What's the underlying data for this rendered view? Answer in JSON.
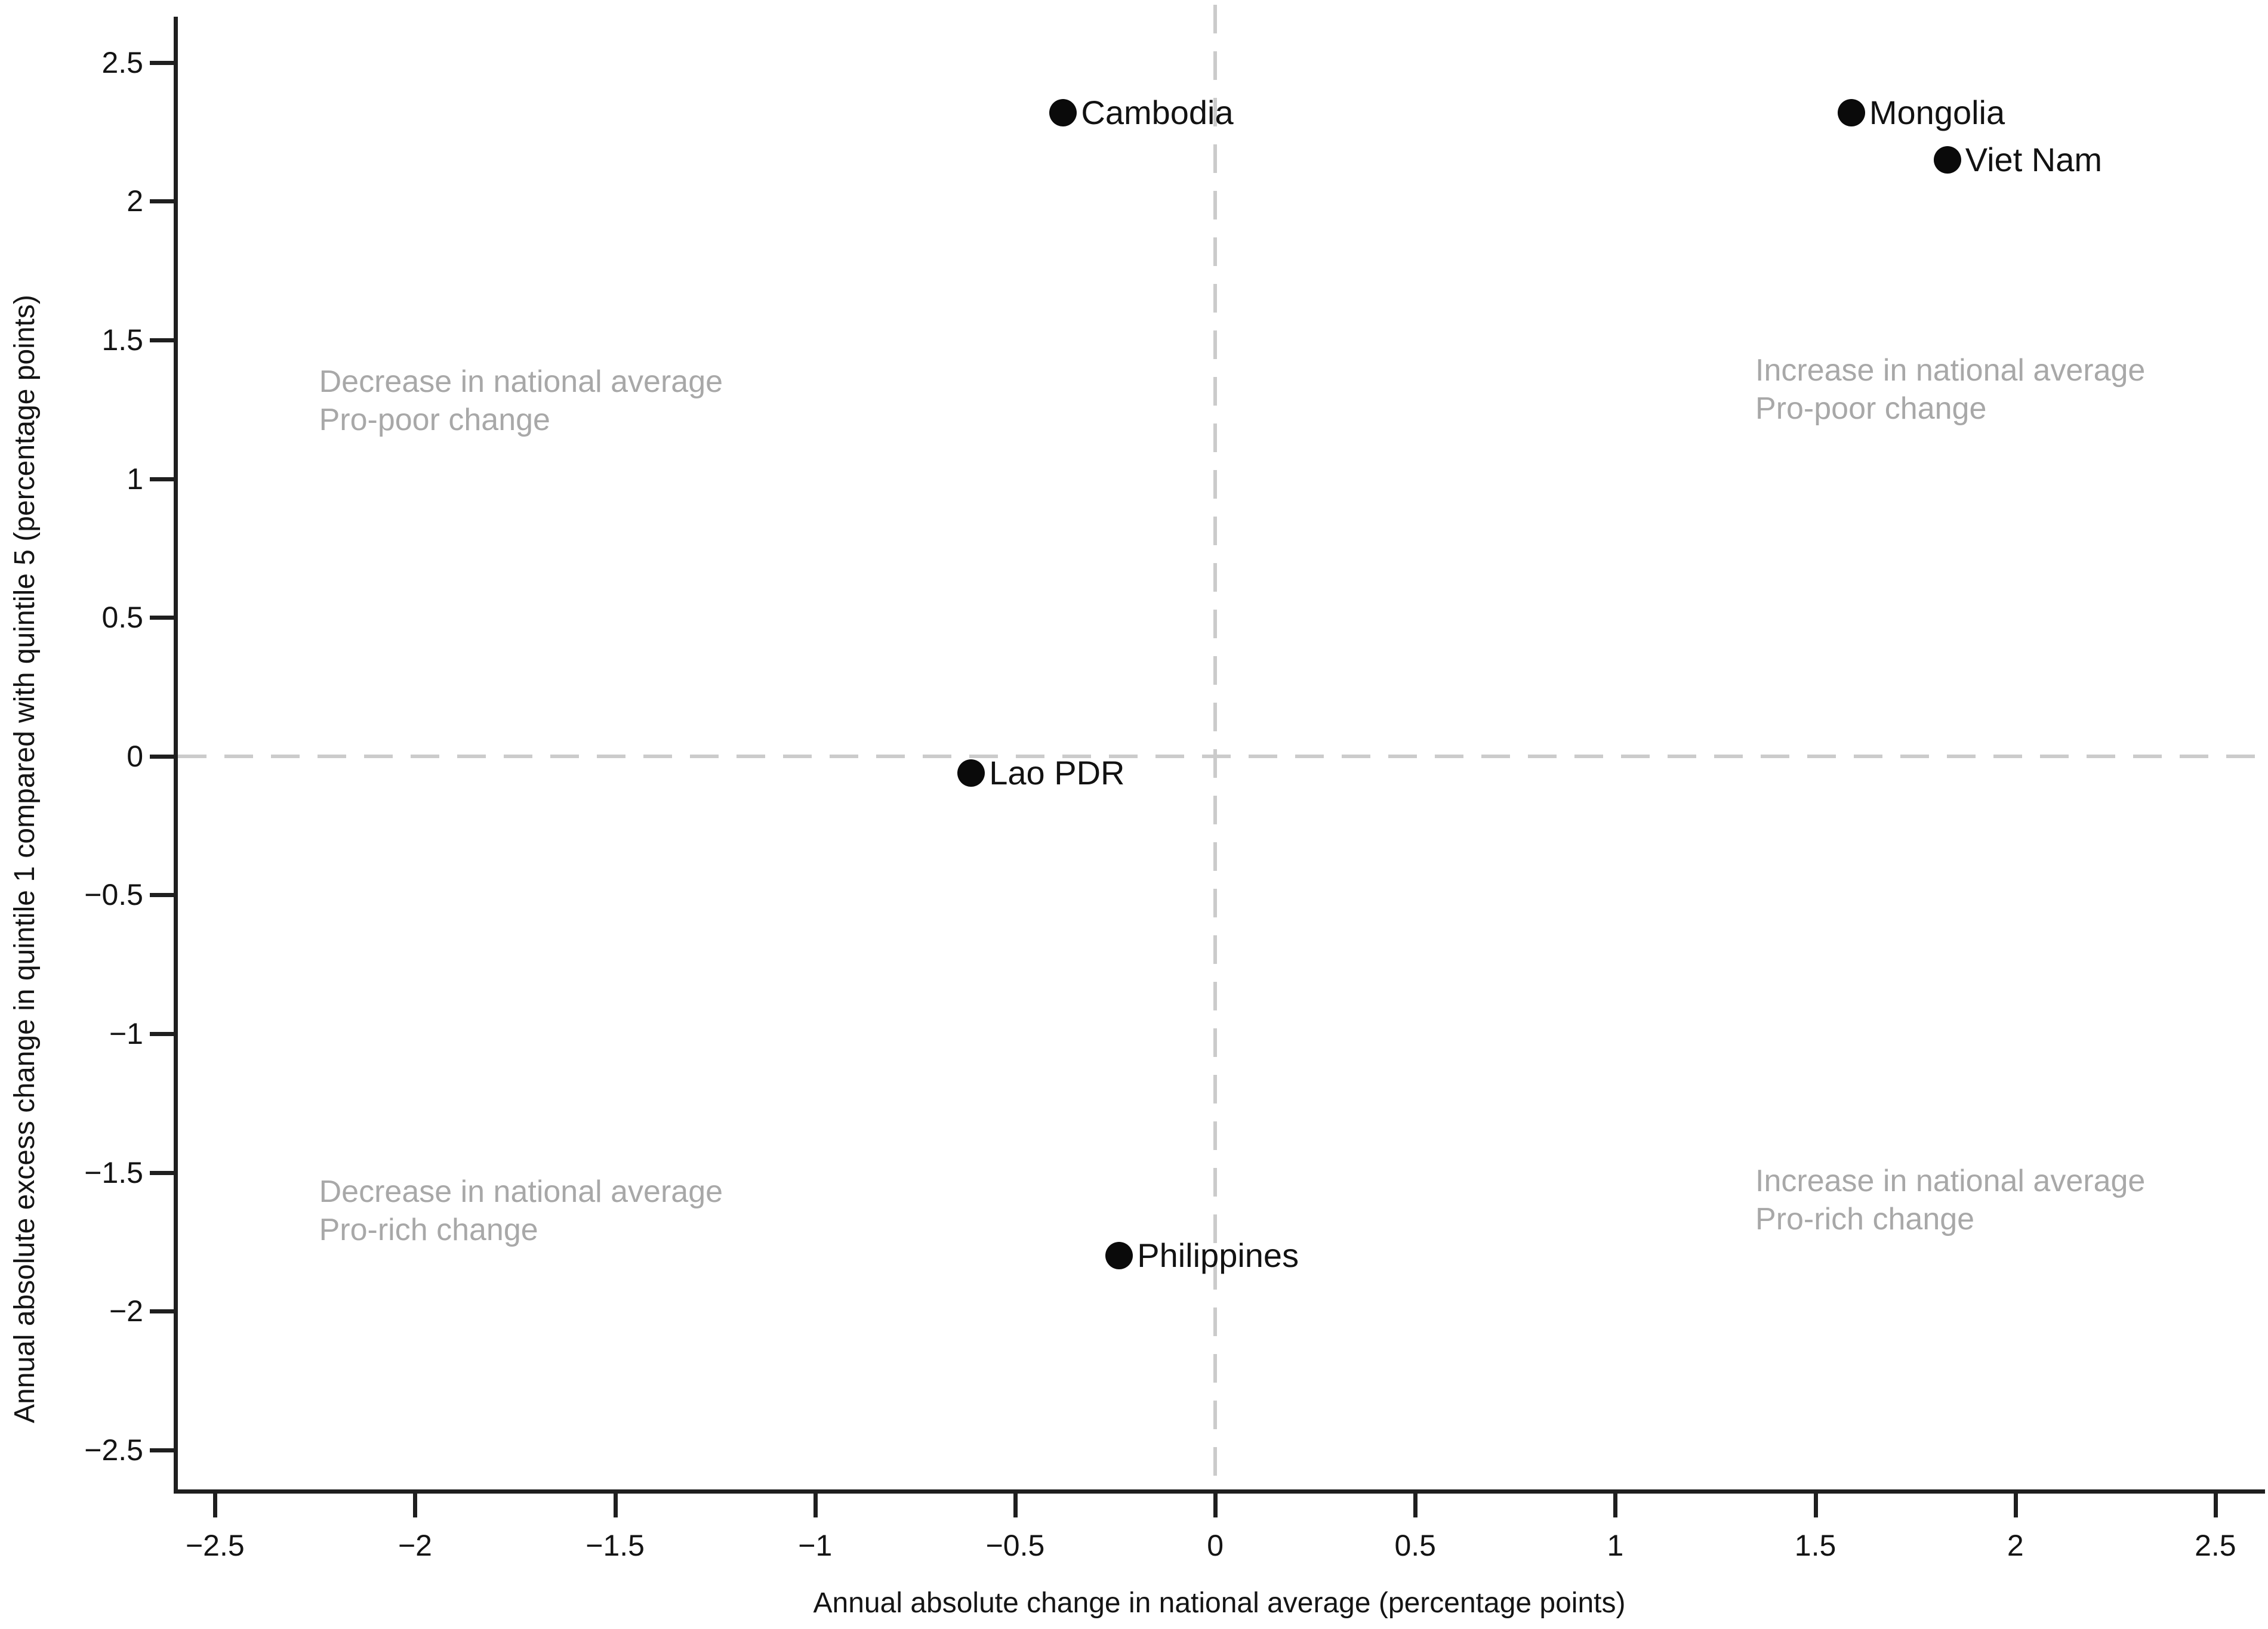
{
  "chart_data": {
    "type": "scatter",
    "title": "",
    "xlabel": "Annual absolute change in national average (percentage points)",
    "ylabel": "Annual absolute excess change in quintile 1 compared with quintile 5 (percentage points)",
    "xlim": [
      -2.593,
      2.624
    ],
    "ylim": [
      -2.642,
      2.665
    ],
    "grid": false,
    "legend": "none",
    "x_ticks": {
      "values": [
        -2.5,
        -2,
        -1.5,
        -1,
        -0.5,
        0,
        0.5,
        1,
        1.5,
        2,
        2.5
      ],
      "labels": [
        "−2.5",
        "−2",
        "−1.5",
        "−1",
        "−0.5",
        "0",
        "0.5",
        "1",
        "1.5",
        "2",
        "2.5"
      ]
    },
    "y_ticks": {
      "values": [
        2.5,
        2,
        1.5,
        1,
        0.5,
        0,
        -0.5,
        -1,
        -1.5,
        -2,
        -2.5
      ],
      "labels": [
        "2.5",
        "2",
        "1.5",
        "1",
        "0.5",
        "0",
        "−0.5",
        "−1",
        "−1.5",
        "−2",
        "−2.5"
      ]
    },
    "reference_lines": {
      "x_zero": true,
      "y_zero": true,
      "style": "dashed"
    },
    "points": [
      {
        "label": "Cambodia",
        "x": -0.38,
        "y": 2.32
      },
      {
        "label": "Mongolia",
        "x": 1.59,
        "y": 2.32
      },
      {
        "label": "Viet Nam",
        "x": 1.83,
        "y": 2.15
      },
      {
        "label": "Lao PDR",
        "x": -0.61,
        "y": -0.06
      },
      {
        "label": "Philippines",
        "x": -0.24,
        "y": -1.8
      }
    ],
    "quadrant_labels": [
      {
        "lines": [
          "Decrease in national average",
          "Pro-poor change"
        ],
        "x": -2.24,
        "y": 1.35
      },
      {
        "lines": [
          "Increase in national average",
          "Pro-poor change"
        ],
        "x": 1.35,
        "y": 1.39
      },
      {
        "lines": [
          "Decrease in national average",
          "Pro-rich change"
        ],
        "x": -2.24,
        "y": -1.57
      },
      {
        "lines": [
          "Increase in national average",
          "Pro-rich change"
        ],
        "x": 1.35,
        "y": -1.53
      }
    ],
    "colors": {
      "point": "#0a0a0a",
      "quadrant_label": "#a8a8a8",
      "dashed_line": "#cbcbcb",
      "axis": "#1f1f1f",
      "background": "#ffffff"
    }
  }
}
